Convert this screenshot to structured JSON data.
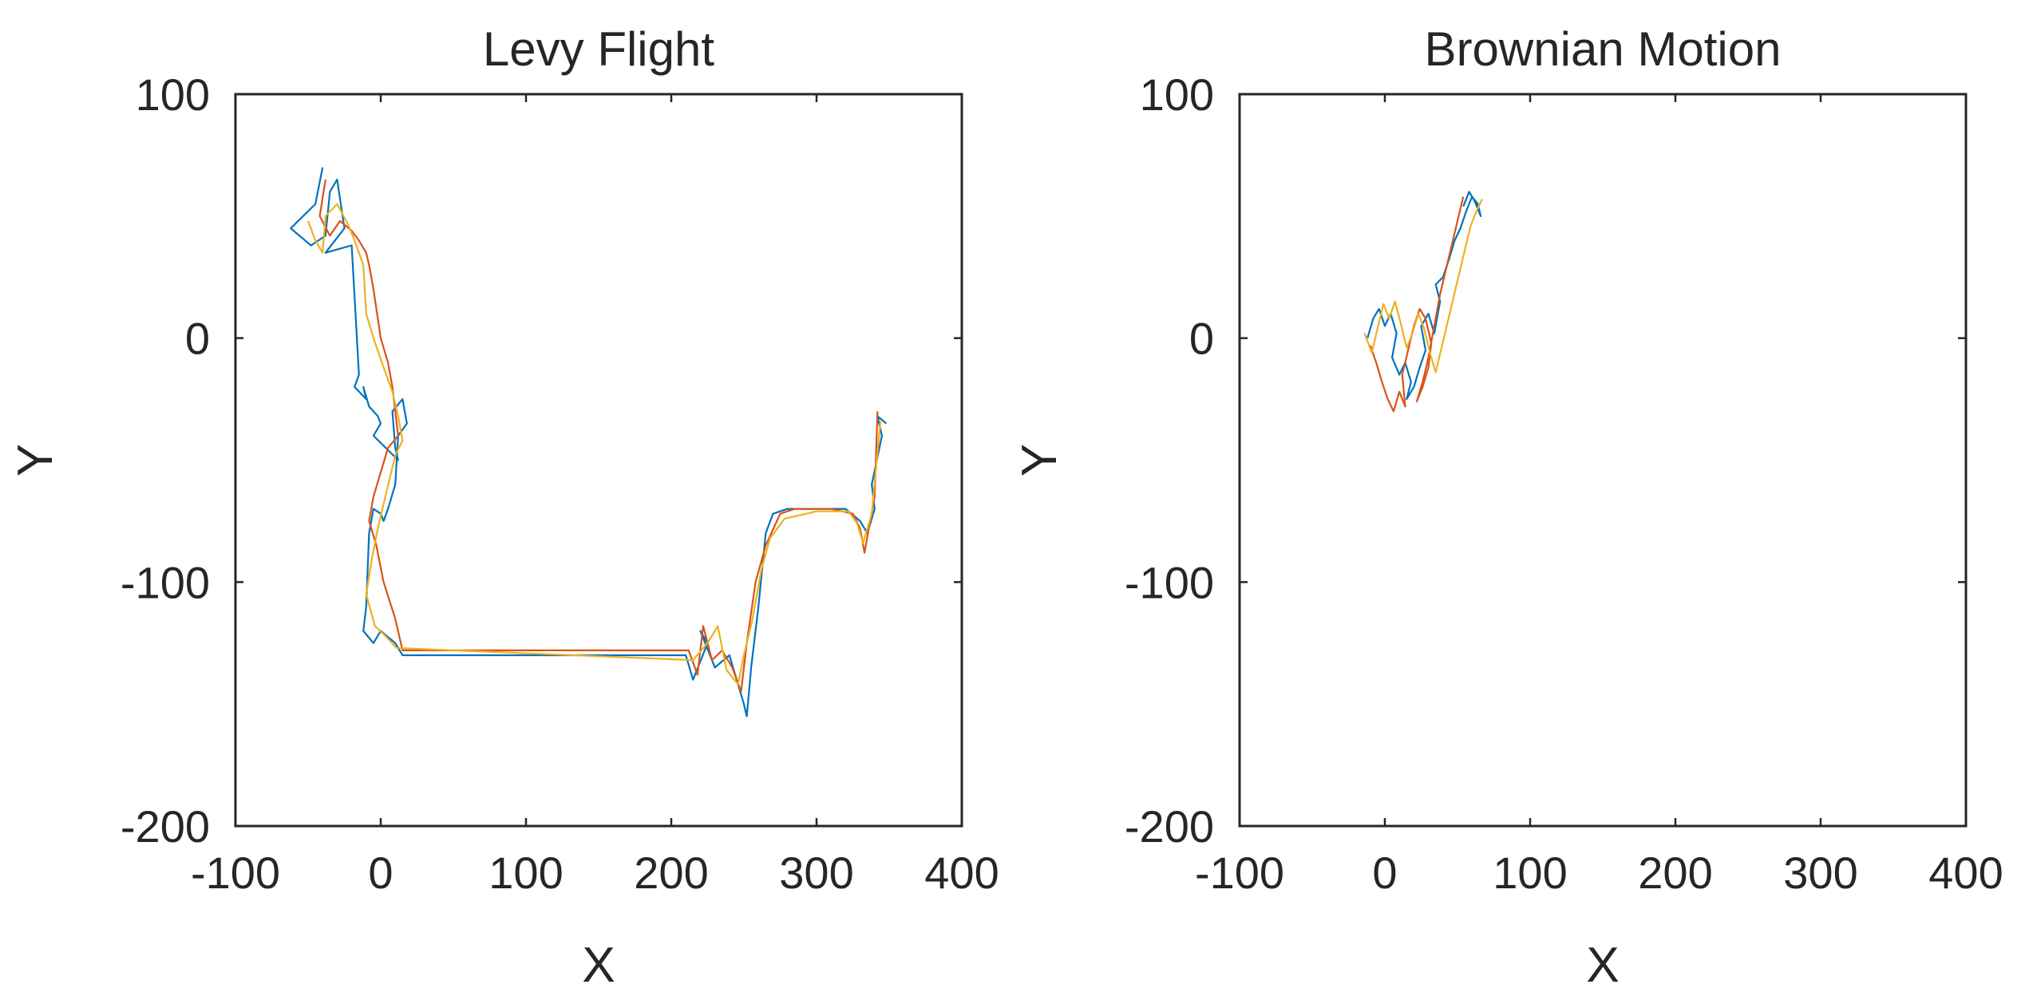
{
  "palette": [
    "#0072BD",
    "#D95319",
    "#EDB120",
    "#7E2F8E",
    "#77AC30",
    "#4DBEEE",
    "#A2142F"
  ],
  "chart_data": [
    {
      "type": "line",
      "title": "Levy Flight",
      "xlabel": "X",
      "ylabel": "Y",
      "xlim": [
        -100,
        400
      ],
      "ylim": [
        -200,
        100
      ],
      "xticks": [
        "-100",
        "0",
        "100",
        "200",
        "300",
        "400"
      ],
      "yticks": [
        "100",
        "0",
        "-100",
        "-200"
      ],
      "xtick_values": [
        -100,
        0,
        100,
        200,
        300,
        400
      ],
      "ytick_values": [
        100,
        0,
        -100,
        -200
      ],
      "grid": false,
      "series": [
        {
          "x": [
            -40,
            -45,
            -62,
            -48,
            -38,
            -35,
            -30,
            -25,
            -38,
            -20,
            -15,
            -18,
            -10,
            -12,
            -8,
            -5,
            -2,
            0,
            -5,
            12,
            10,
            8,
            15,
            18,
            12,
            10,
            5,
            2,
            0,
            -5,
            -8,
            -10,
            -12,
            -5,
            0,
            10,
            15,
            210,
            215,
            225,
            220,
            230,
            240,
            245,
            250,
            252,
            255,
            260,
            265,
            270,
            280,
            320,
            330,
            335,
            340,
            338,
            345,
            342,
            348
          ],
          "y": [
            70,
            55,
            45,
            38,
            42,
            60,
            65,
            45,
            35,
            38,
            -15,
            -20,
            -25,
            -20,
            -28,
            -30,
            -32,
            -35,
            -40,
            -50,
            -45,
            -30,
            -25,
            -35,
            -40,
            -60,
            -70,
            -75,
            -72,
            -70,
            -80,
            -110,
            -120,
            -125,
            -120,
            -125,
            -130,
            -130,
            -140,
            -125,
            -120,
            -135,
            -130,
            -140,
            -150,
            -155,
            -135,
            -110,
            -80,
            -72,
            -70,
            -70,
            -75,
            -80,
            -70,
            -60,
            -40,
            -32,
            -35
          ]
        },
        {
          "x": [
            -38,
            -42,
            -35,
            -28,
            -20,
            -15,
            -10,
            -8,
            -5,
            0,
            5,
            8,
            10,
            12,
            5,
            0,
            -5,
            -8,
            -3,
            2,
            10,
            15,
            212,
            218,
            222,
            228,
            235,
            242,
            248,
            252,
            258,
            265,
            275,
            285,
            310,
            325,
            330,
            333,
            336,
            340,
            342
          ],
          "y": [
            65,
            50,
            42,
            48,
            44,
            40,
            35,
            30,
            20,
            0,
            -10,
            -20,
            -30,
            -40,
            -45,
            -55,
            -65,
            -75,
            -85,
            -100,
            -115,
            -128,
            -128,
            -138,
            -118,
            -132,
            -128,
            -135,
            -145,
            -125,
            -100,
            -85,
            -72,
            -70,
            -70,
            -72,
            -78,
            -88,
            -78,
            -65,
            -30
          ]
        },
        {
          "x": [
            -50,
            -45,
            -40,
            -38,
            -30,
            -22,
            -18,
            -12,
            -10,
            -5,
            2,
            8,
            12,
            15,
            10,
            6,
            2,
            -2,
            -6,
            -10,
            -4,
            3,
            11,
            215,
            225,
            232,
            238,
            246,
            250,
            256,
            262,
            268,
            278,
            300,
            322,
            328,
            332,
            338,
            344
          ],
          "y": [
            48,
            40,
            35,
            50,
            55,
            46,
            40,
            30,
            10,
            0,
            -12,
            -22,
            -32,
            -42,
            -48,
            -58,
            -68,
            -78,
            -90,
            -105,
            -118,
            -122,
            -127,
            -132,
            -125,
            -118,
            -136,
            -142,
            -130,
            -115,
            -95,
            -82,
            -74,
            -71,
            -71,
            -76,
            -84,
            -72,
            -34
          ]
        }
      ]
    },
    {
      "type": "line",
      "title": "Brownian Motion",
      "xlabel": "X",
      "ylabel": "Y",
      "xlim": [
        -100,
        400
      ],
      "ylim": [
        -200,
        100
      ],
      "xticks": [
        "-100",
        "0",
        "100",
        "200",
        "300",
        "400"
      ],
      "yticks": [
        "100",
        "0",
        "-100",
        "-200"
      ],
      "xtick_values": [
        -100,
        0,
        100,
        200,
        300,
        400
      ],
      "ytick_values": [
        100,
        0,
        -100,
        -200
      ],
      "grid": false,
      "series": [
        {
          "x": [
            -12,
            -8,
            -4,
            0,
            4,
            8,
            5,
            10,
            14,
            18,
            15,
            20,
            24,
            28,
            25,
            30,
            34,
            38,
            35,
            40,
            44,
            48,
            52,
            56,
            60,
            64,
            66,
            62,
            58,
            54
          ],
          "y": [
            0,
            8,
            12,
            5,
            10,
            2,
            -8,
            -15,
            -10,
            -18,
            -25,
            -20,
            -12,
            -5,
            5,
            10,
            2,
            15,
            22,
            25,
            32,
            40,
            45,
            52,
            58,
            55,
            50,
            56,
            60,
            54
          ]
        },
        {
          "x": [
            -10,
            -6,
            -2,
            2,
            6,
            10,
            14,
            12,
            16,
            20,
            24,
            28,
            32,
            30,
            26,
            22,
            26,
            30,
            34,
            38,
            42,
            46,
            50,
            54
          ],
          "y": [
            -3,
            -10,
            -18,
            -25,
            -30,
            -22,
            -28,
            -15,
            -5,
            5,
            12,
            8,
            -2,
            -12,
            -20,
            -26,
            -18,
            -8,
            5,
            18,
            28,
            38,
            48,
            58
          ]
        },
        {
          "x": [
            -14,
            -9,
            -5,
            -1,
            3,
            7,
            11,
            15,
            19,
            23,
            27,
            31,
            35,
            39,
            43,
            47,
            51,
            55,
            59,
            63,
            67
          ],
          "y": [
            2,
            -6,
            4,
            14,
            8,
            15,
            6,
            -4,
            2,
            10,
            4,
            -6,
            -14,
            -4,
            6,
            16,
            26,
            36,
            46,
            52,
            57
          ]
        }
      ]
    }
  ]
}
